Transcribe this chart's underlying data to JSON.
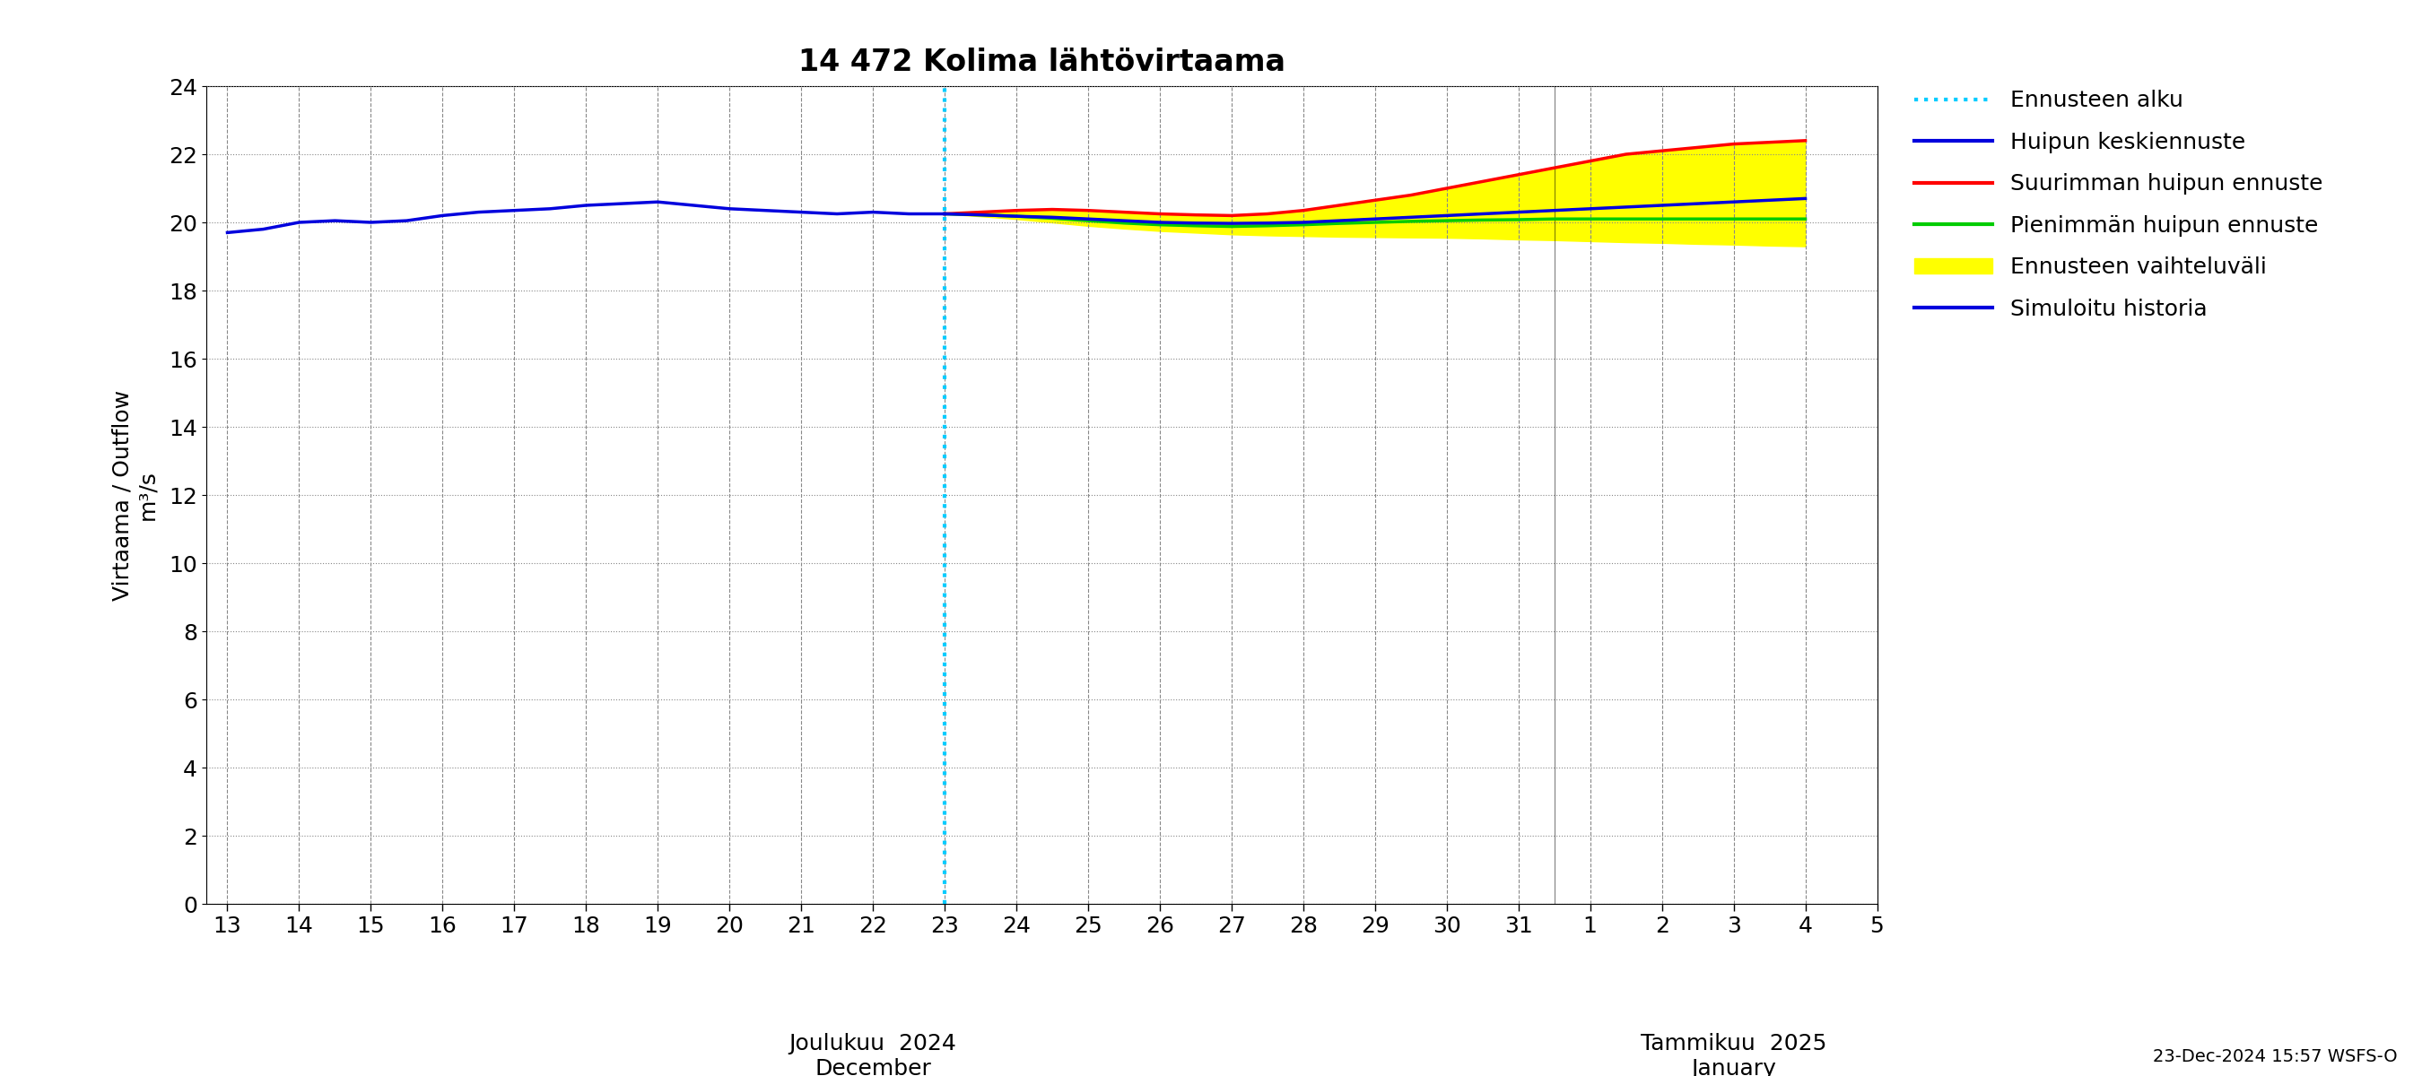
{
  "title": "14 472 Kolima lähtövirtaama",
  "ylabel1": "Virtaama / Outflow",
  "ylabel2": "m³/s",
  "xlabel_left": "Joulukuu  2024\nDecember",
  "xlabel_right": "Tammikuu  2025\nJanuary",
  "timestamp": "23-Dec-2024 15:57 WSFS-O",
  "ylim": [
    0,
    24
  ],
  "yticks": [
    0,
    2,
    4,
    6,
    8,
    10,
    12,
    14,
    16,
    18,
    20,
    22,
    24
  ],
  "background_color": "#ffffff",
  "grid_color": "#888888",
  "plot_bg": "#ffffff",
  "history_color": "#0000dd",
  "mean_forecast_color": "#0000dd",
  "max_forecast_color": "#ff0000",
  "min_forecast_color": "#00cc00",
  "band_color": "#ffff00",
  "vline_color": "#00ccff",
  "legend_labels": [
    "Ennusteen alku",
    "Huipun keskiennuste",
    "Suurimman huipun ennuste",
    "Pienimmän huipun ennuste",
    "Ennusteen vaihteluväli",
    "Simuloitu historia"
  ],
  "legend_line_colors": [
    "#00ccff",
    "#0000dd",
    "#ff0000",
    "#00cc00",
    "#ffff00",
    "#0000dd"
  ],
  "history_x": [
    13,
    13.5,
    14,
    14.5,
    15,
    15.5,
    16,
    16.5,
    17,
    17.5,
    18,
    18.5,
    19,
    19.5,
    20,
    20.5,
    21,
    21.5,
    22,
    22.5,
    23
  ],
  "history_y": [
    19.7,
    19.8,
    20.0,
    20.05,
    20.0,
    20.05,
    20.2,
    20.3,
    20.35,
    20.4,
    20.5,
    20.55,
    20.6,
    20.5,
    20.4,
    20.35,
    20.3,
    20.25,
    20.3,
    20.25,
    20.25
  ],
  "forecast_x": [
    23,
    23.5,
    24,
    24.5,
    25,
    25.5,
    26,
    26.5,
    27,
    27.5,
    28,
    28.5,
    29,
    29.5,
    30,
    30.5,
    31,
    31.5,
    32,
    32.5,
    33,
    33.5,
    34,
    34.5,
    35
  ],
  "mean_forecast_y": [
    20.25,
    20.22,
    20.18,
    20.15,
    20.1,
    20.05,
    20.0,
    19.98,
    19.97,
    19.98,
    20.0,
    20.05,
    20.1,
    20.15,
    20.2,
    20.25,
    20.3,
    20.35,
    20.4,
    20.45,
    20.5,
    20.55,
    20.6,
    20.65,
    20.7
  ],
  "max_forecast_y": [
    20.25,
    20.3,
    20.35,
    20.38,
    20.35,
    20.3,
    20.25,
    20.22,
    20.2,
    20.25,
    20.35,
    20.5,
    20.65,
    20.8,
    21.0,
    21.2,
    21.4,
    21.6,
    21.8,
    22.0,
    22.1,
    22.2,
    22.3,
    22.35,
    22.4
  ],
  "min_forecast_y": [
    20.25,
    20.22,
    20.18,
    20.12,
    20.05,
    19.98,
    19.93,
    19.9,
    19.88,
    19.9,
    19.93,
    19.97,
    20.0,
    20.03,
    20.05,
    20.07,
    20.08,
    20.1,
    20.1,
    20.1,
    20.1,
    20.1,
    20.1,
    20.1,
    20.1
  ],
  "upper_band_y": [
    20.25,
    20.3,
    20.35,
    20.38,
    20.35,
    20.3,
    20.25,
    20.22,
    20.2,
    20.25,
    20.35,
    20.5,
    20.65,
    20.8,
    21.0,
    21.2,
    21.4,
    21.6,
    21.8,
    22.0,
    22.1,
    22.2,
    22.3,
    22.35,
    22.4
  ],
  "lower_band_y": [
    20.25,
    20.18,
    20.1,
    20.0,
    19.9,
    19.82,
    19.75,
    19.7,
    19.65,
    19.62,
    19.6,
    19.58,
    19.57,
    19.56,
    19.55,
    19.53,
    19.5,
    19.48,
    19.45,
    19.42,
    19.4,
    19.37,
    19.35,
    19.32,
    19.3
  ],
  "xmin": 13,
  "xmax": 35.5
}
